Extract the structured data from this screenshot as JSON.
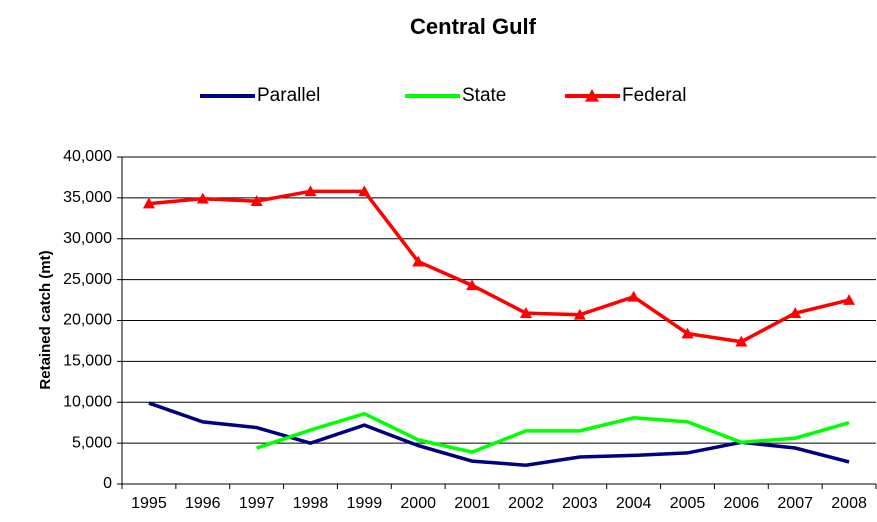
{
  "chart_data": {
    "type": "line",
    "title": "Central Gulf",
    "y_label": "Retained catch (mt)",
    "categories": [
      "1995",
      "1996",
      "1997",
      "1998",
      "1999",
      "2000",
      "2001",
      "2002",
      "2003",
      "2004",
      "2005",
      "2006",
      "2007",
      "2008"
    ],
    "series": [
      {
        "name": "Parallel",
        "color": "#000080",
        "values": [
          9900,
          7600,
          6900,
          5000,
          7200,
          4700,
          2800,
          2300,
          3300,
          3500,
          3800,
          5100,
          4400,
          2700
        ]
      },
      {
        "name": "State",
        "color": "#00ff00",
        "values": [
          null,
          null,
          4400,
          6600,
          8600,
          5400,
          3900,
          6500,
          6500,
          8100,
          7600,
          5100,
          5600,
          7500
        ]
      },
      {
        "name": "Federal",
        "color": "#ff0000",
        "marker": "triangle",
        "values": [
          34300,
          34900,
          34600,
          35800,
          35800,
          27200,
          24300,
          20900,
          20700,
          22900,
          18400,
          17400,
          20900,
          22500
        ]
      }
    ],
    "ylim": [
      0,
      40000
    ],
    "yticks": [
      0,
      {
        "value": 5000,
        "label": "5,000"
      },
      {
        "value": 10000,
        "label": "10,000"
      },
      {
        "value": 15000,
        "label": "15,000"
      },
      {
        "value": 20000,
        "label": "20,000"
      },
      {
        "value": 25000,
        "label": "25,000"
      },
      {
        "value": 30000,
        "label": "30,000"
      },
      {
        "value": 35000,
        "label": "35,000"
      },
      {
        "value": 40000,
        "label": "40,000"
      }
    ],
    "grid": true,
    "legend": "top"
  }
}
